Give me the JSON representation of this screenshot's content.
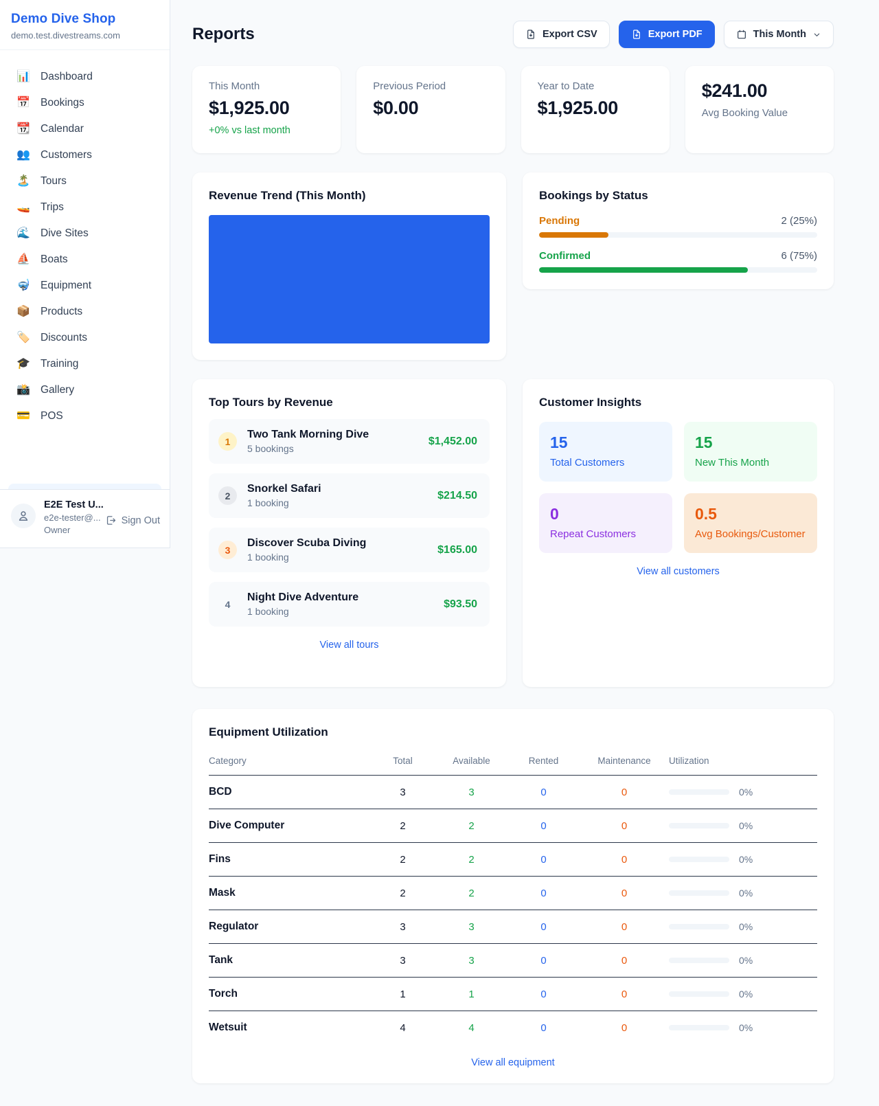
{
  "sidebar": {
    "brand": "Demo Dive Shop",
    "domain": "demo.test.divestreams.com",
    "items": [
      {
        "icon": "📊",
        "label": "Dashboard"
      },
      {
        "icon": "📅",
        "label": "Bookings"
      },
      {
        "icon": "📆",
        "label": "Calendar"
      },
      {
        "icon": "👥",
        "label": "Customers"
      },
      {
        "icon": "🏝️",
        "label": "Tours"
      },
      {
        "icon": "🚤",
        "label": "Trips"
      },
      {
        "icon": "🌊",
        "label": "Dive Sites"
      },
      {
        "icon": "⛵",
        "label": "Boats"
      },
      {
        "icon": "🤿",
        "label": "Equipment"
      },
      {
        "icon": "📦",
        "label": "Products"
      },
      {
        "icon": "🏷️",
        "label": "Discounts"
      },
      {
        "icon": "🎓",
        "label": "Training"
      },
      {
        "icon": "📸",
        "label": "Gallery"
      },
      {
        "icon": "💳",
        "label": "POS"
      }
    ],
    "user": {
      "name": "E2E Test U...",
      "email": "e2e-tester@...",
      "role": "Owner",
      "sign_out": "Sign Out"
    }
  },
  "header": {
    "title": "Reports",
    "export_csv": "Export CSV",
    "export_pdf": "Export PDF",
    "period": "This Month"
  },
  "stats": {
    "this_month": {
      "label": "This Month",
      "value": "$1,925.00",
      "delta": "+0% vs last month"
    },
    "previous_period": {
      "label": "Previous Period",
      "value": "$0.00"
    },
    "year_to_date": {
      "label": "Year to Date",
      "value": "$1,925.00"
    },
    "avg_booking": {
      "value": "$241.00",
      "label": "Avg Booking Value"
    }
  },
  "revenue_trend": {
    "title": "Revenue Trend (This Month)",
    "bar_color": "#2563eb",
    "bar_width": "100%"
  },
  "bookings_by_status": {
    "title": "Bookings by Status",
    "rows": [
      {
        "label": "Pending",
        "value": "2 (25%)",
        "pct": "25%",
        "color": "#d97706"
      },
      {
        "label": "Confirmed",
        "value": "6 (75%)",
        "pct": "75%",
        "color": "#16a34a"
      }
    ]
  },
  "top_tours": {
    "title": "Top Tours by Revenue",
    "view_all": "View all tours",
    "items": [
      {
        "rank": "1",
        "name": "Two Tank Morning Dive",
        "bookings": "5 bookings",
        "revenue": "$1,452.00"
      },
      {
        "rank": "2",
        "name": "Snorkel Safari",
        "bookings": "1 booking",
        "revenue": "$214.50"
      },
      {
        "rank": "3",
        "name": "Discover Scuba Diving",
        "bookings": "1 booking",
        "revenue": "$165.00"
      },
      {
        "rank": "4",
        "name": "Night Dive Adventure",
        "bookings": "1 booking",
        "revenue": "$93.50"
      }
    ]
  },
  "customer_insights": {
    "title": "Customer Insights",
    "view_all": "View all customers",
    "tiles": [
      {
        "value": "15",
        "label": "Total Customers",
        "theme": "blue"
      },
      {
        "value": "15",
        "label": "New This Month",
        "theme": "green"
      },
      {
        "value": "0",
        "label": "Repeat Customers",
        "theme": "purple"
      },
      {
        "value": "0.5",
        "label": "Avg Bookings/Customer",
        "theme": "orange"
      }
    ]
  },
  "equipment": {
    "title": "Equipment Utilization",
    "view_all": "View all equipment",
    "columns": [
      "Category",
      "Total",
      "Available",
      "Rented",
      "Maintenance",
      "Utilization"
    ],
    "rows": [
      {
        "category": "BCD",
        "total": "3",
        "available": "3",
        "rented": "0",
        "maintenance": "0",
        "utilization": "0%"
      },
      {
        "category": "Dive Computer",
        "total": "2",
        "available": "2",
        "rented": "0",
        "maintenance": "0",
        "utilization": "0%"
      },
      {
        "category": "Fins",
        "total": "2",
        "available": "2",
        "rented": "0",
        "maintenance": "0",
        "utilization": "0%"
      },
      {
        "category": "Mask",
        "total": "2",
        "available": "2",
        "rented": "0",
        "maintenance": "0",
        "utilization": "0%"
      },
      {
        "category": "Regulator",
        "total": "3",
        "available": "3",
        "rented": "0",
        "maintenance": "0",
        "utilization": "0%"
      },
      {
        "category": "Tank",
        "total": "3",
        "available": "3",
        "rented": "0",
        "maintenance": "0",
        "utilization": "0%"
      },
      {
        "category": "Torch",
        "total": "1",
        "available": "1",
        "rented": "0",
        "maintenance": "0",
        "utilization": "0%"
      },
      {
        "category": "Wetsuit",
        "total": "4",
        "available": "4",
        "rented": "0",
        "maintenance": "0",
        "utilization": "0%"
      }
    ]
  },
  "colors": {
    "accent": "#2563eb",
    "green": "#16a34a",
    "orange": "#ea580c",
    "amber": "#d97706",
    "purple": "#9333ea"
  }
}
